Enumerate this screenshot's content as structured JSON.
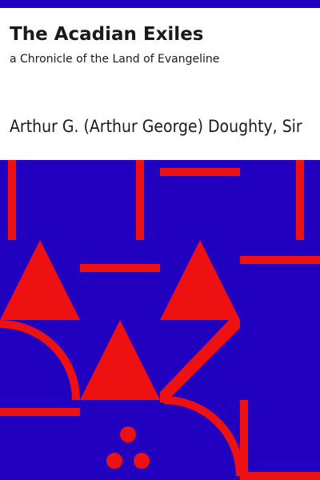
{
  "book": {
    "title": "The Acadian Exiles",
    "subtitle": "a Chronicle of the Land of Evangeline",
    "author": "Arthur G. (Arthur George) Doughty, Sir"
  },
  "colors": {
    "accent_bar": "#2100c0",
    "art_background": "#2200c0",
    "art_shapes": "#ee1111",
    "text": "#1a1a1a"
  }
}
